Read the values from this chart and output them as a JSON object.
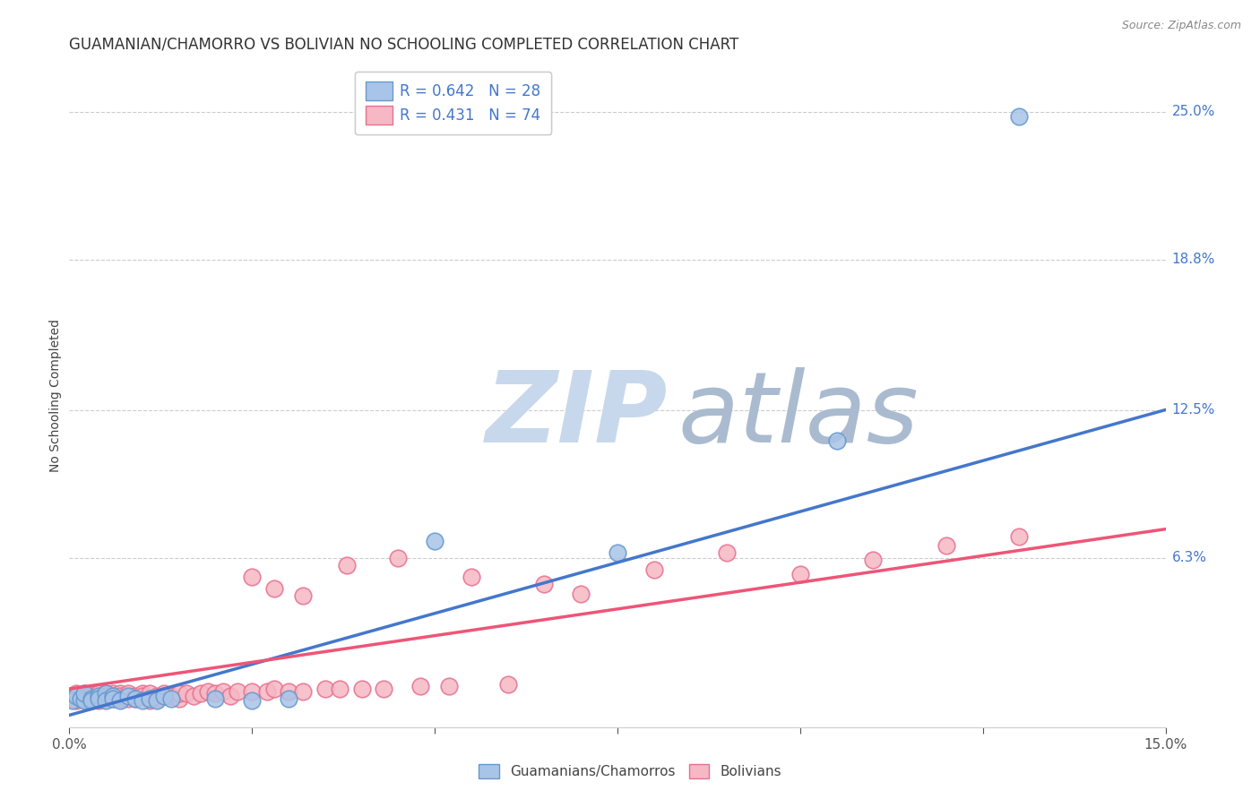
{
  "title": "GUAMANIAN/CHAMORRO VS BOLIVIAN NO SCHOOLING COMPLETED CORRELATION CHART",
  "source": "Source: ZipAtlas.com",
  "ylabel": "No Schooling Completed",
  "xlim": [
    0.0,
    0.15
  ],
  "ylim": [
    -0.008,
    0.27
  ],
  "yticks": [
    0.063,
    0.125,
    0.188,
    0.25
  ],
  "ytick_labels": [
    "6.3%",
    "12.5%",
    "18.8%",
    "25.0%"
  ],
  "blue_R": 0.642,
  "blue_N": 28,
  "pink_R": 0.431,
  "pink_N": 74,
  "blue_dot_color": "#A8C4E8",
  "pink_dot_color": "#F5B8C4",
  "blue_edge_color": "#6699CC",
  "pink_edge_color": "#E87090",
  "blue_line_color": "#4477CC",
  "pink_line_color": "#EE5577",
  "watermark_zip_color": "#C8D8EC",
  "watermark_atlas_color": "#AABBD0",
  "legend_label_blue": "Guamanians/Chamorros",
  "legend_label_pink": "Bolivians",
  "blue_scatter_x": [
    0.0005,
    0.001,
    0.0015,
    0.002,
    0.002,
    0.003,
    0.003,
    0.004,
    0.004,
    0.005,
    0.005,
    0.006,
    0.006,
    0.007,
    0.008,
    0.009,
    0.01,
    0.011,
    0.012,
    0.013,
    0.014,
    0.02,
    0.025,
    0.03,
    0.05,
    0.075,
    0.105,
    0.13
  ],
  "blue_scatter_y": [
    0.003,
    0.005,
    0.004,
    0.003,
    0.006,
    0.004,
    0.003,
    0.005,
    0.004,
    0.006,
    0.003,
    0.005,
    0.004,
    0.003,
    0.005,
    0.004,
    0.003,
    0.004,
    0.003,
    0.005,
    0.004,
    0.004,
    0.003,
    0.004,
    0.07,
    0.065,
    0.112,
    0.248
  ],
  "pink_scatter_x": [
    0.0003,
    0.0005,
    0.001,
    0.001,
    0.001,
    0.001,
    0.002,
    0.002,
    0.002,
    0.003,
    0.003,
    0.003,
    0.004,
    0.004,
    0.004,
    0.004,
    0.005,
    0.005,
    0.005,
    0.006,
    0.006,
    0.006,
    0.007,
    0.007,
    0.007,
    0.008,
    0.008,
    0.009,
    0.009,
    0.01,
    0.01,
    0.011,
    0.011,
    0.012,
    0.012,
    0.013,
    0.013,
    0.014,
    0.015,
    0.015,
    0.016,
    0.017,
    0.018,
    0.019,
    0.02,
    0.021,
    0.022,
    0.023,
    0.025,
    0.027,
    0.028,
    0.03,
    0.032,
    0.035,
    0.037,
    0.04,
    0.043,
    0.048,
    0.052,
    0.06,
    0.065,
    0.07,
    0.08,
    0.09,
    0.1,
    0.11,
    0.12,
    0.13,
    0.025,
    0.028,
    0.032,
    0.038,
    0.045,
    0.055
  ],
  "pink_scatter_y": [
    0.005,
    0.004,
    0.006,
    0.004,
    0.005,
    0.003,
    0.005,
    0.004,
    0.006,
    0.004,
    0.006,
    0.005,
    0.003,
    0.005,
    0.006,
    0.004,
    0.006,
    0.004,
    0.005,
    0.004,
    0.006,
    0.005,
    0.004,
    0.006,
    0.005,
    0.004,
    0.006,
    0.005,
    0.004,
    0.006,
    0.005,
    0.003,
    0.006,
    0.004,
    0.005,
    0.005,
    0.006,
    0.005,
    0.004,
    0.006,
    0.006,
    0.005,
    0.006,
    0.007,
    0.006,
    0.007,
    0.005,
    0.007,
    0.007,
    0.007,
    0.008,
    0.007,
    0.007,
    0.008,
    0.008,
    0.008,
    0.008,
    0.009,
    0.009,
    0.01,
    0.052,
    0.048,
    0.058,
    0.065,
    0.056,
    0.062,
    0.068,
    0.072,
    0.055,
    0.05,
    0.047,
    0.06,
    0.063,
    0.055
  ],
  "blue_line_x0": 0.0,
  "blue_line_y0": -0.003,
  "blue_line_x1": 0.15,
  "blue_line_y1": 0.125,
  "pink_line_x0": 0.0,
  "pink_line_y0": 0.008,
  "pink_line_x1": 0.15,
  "pink_line_y1": 0.075,
  "bg_color": "#FFFFFF",
  "grid_color": "#CCCCCC",
  "title_fontsize": 12,
  "source_fontsize": 9,
  "axis_label_fontsize": 10,
  "tick_fontsize": 11,
  "legend_fontsize": 12
}
